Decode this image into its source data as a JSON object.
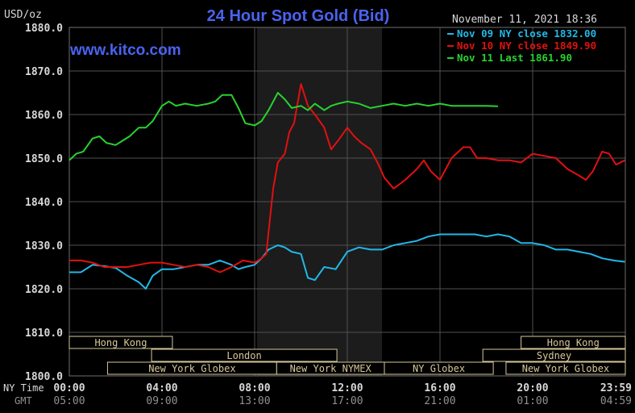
{
  "header": {
    "unit": "USD/oz",
    "title": "24 Hour Spot Gold (Bid)",
    "timestamp": "November 11, 2021 18:36",
    "watermark": "www.kitco.com"
  },
  "colors": {
    "background": "#000000",
    "grid": "#505050",
    "title": "#4a63f0",
    "watermark": "#4a63f0",
    "axis_text": "#d8d8d8",
    "gmt_text": "#909090",
    "session_shade": "#1c1c1c",
    "session_box": "#d6c79a"
  },
  "chart_data": {
    "type": "line",
    "xlabel_rows": [
      "NY Time",
      "GMT"
    ],
    "x_ticks": [
      "00:00",
      "04:00",
      "08:00",
      "12:00",
      "16:00",
      "20:00",
      "23:59"
    ],
    "x_ticks_gmt": [
      "05:00",
      "09:00",
      "13:00",
      "17:00",
      "21:00",
      "01:00",
      "04:59"
    ],
    "ylim": [
      1800,
      1880
    ],
    "y_ticks": [
      "1800.0",
      "1810.0",
      "1820.0",
      "1830.0",
      "1840.0",
      "1850.0",
      "1860.0",
      "1870.0",
      "1880.0"
    ],
    "grid": true,
    "legend_position": "top-right",
    "shaded_region_hours": [
      8.1,
      13.5
    ],
    "series": [
      {
        "name": "Nov 09 NY close 1832.00",
        "color": "#22b8e8",
        "x": [
          0,
          0.5,
          1,
          1.5,
          2,
          2.5,
          3,
          3.3,
          3.6,
          4,
          4.5,
          5,
          5.5,
          6,
          6.5,
          7,
          7.3,
          7.6,
          8,
          8.3,
          8.6,
          9,
          9.3,
          9.6,
          10,
          10.3,
          10.6,
          11,
          11.5,
          12,
          12.5,
          13,
          13.5,
          14,
          14.5,
          15,
          15.5,
          16,
          16.5,
          17,
          17.5,
          18,
          18.5,
          19,
          19.5,
          20,
          20.5,
          21,
          21.5,
          22,
          22.5,
          23,
          23.5,
          23.98
        ],
        "values": [
          1823.8,
          1823.8,
          1825.5,
          1825.2,
          1824.8,
          1823.0,
          1821.5,
          1820.0,
          1823.0,
          1824.5,
          1824.5,
          1825.0,
          1825.5,
          1825.5,
          1826.5,
          1825.5,
          1824.5,
          1825.0,
          1825.5,
          1827.0,
          1829.0,
          1830.0,
          1829.5,
          1828.5,
          1828.0,
          1822.5,
          1822.0,
          1825.0,
          1824.5,
          1828.5,
          1829.5,
          1829.0,
          1829.0,
          1830.0,
          1830.5,
          1831.0,
          1832.0,
          1832.5,
          1832.5,
          1832.5,
          1832.5,
          1832.0,
          1832.5,
          1832.0,
          1830.5,
          1830.5,
          1830.0,
          1829.0,
          1829.0,
          1828.5,
          1828.0,
          1827.0,
          1826.5,
          1826.2
        ]
      },
      {
        "name": "Nov 10 NY close 1849.90",
        "color": "#e21010",
        "x": [
          0,
          0.5,
          1,
          1.5,
          2,
          2.5,
          3,
          3.5,
          4,
          4.5,
          5,
          5.5,
          6,
          6.5,
          7,
          7.5,
          8,
          8.3,
          8.5,
          8.8,
          9,
          9.3,
          9.5,
          9.7,
          10,
          10.3,
          10.6,
          11,
          11.3,
          11.6,
          12,
          12.3,
          12.6,
          13,
          13.3,
          13.6,
          14,
          14.5,
          15,
          15.3,
          15.6,
          16,
          16.5,
          17,
          17.3,
          17.6,
          18,
          18.5,
          19,
          19.5,
          20,
          20.5,
          21,
          21.5,
          22,
          22.3,
          22.6,
          23,
          23.3,
          23.6,
          23.98
        ],
        "values": [
          1826.5,
          1826.5,
          1826.0,
          1825.0,
          1825.0,
          1825.0,
          1825.5,
          1826.0,
          1826.0,
          1825.5,
          1825.0,
          1825.5,
          1825.0,
          1823.8,
          1825.0,
          1826.5,
          1826.0,
          1827.0,
          1828.0,
          1843.0,
          1849.0,
          1851.0,
          1856.0,
          1858.0,
          1867.0,
          1862.0,
          1860.0,
          1857.0,
          1852.0,
          1854.0,
          1857.0,
          1855.0,
          1853.5,
          1852.0,
          1849.0,
          1845.5,
          1843.0,
          1845.0,
          1847.5,
          1849.5,
          1847.0,
          1845.0,
          1850.0,
          1852.5,
          1852.5,
          1850.0,
          1850.0,
          1849.5,
          1849.5,
          1849.0,
          1851.0,
          1850.5,
          1850.0,
          1847.5,
          1846.0,
          1845.0,
          1847.0,
          1851.5,
          1851.0,
          1848.5,
          1849.5
        ]
      },
      {
        "name": "Nov 11 Last 1861.90",
        "color": "#28d22e",
        "x": [
          0,
          0.3,
          0.6,
          1,
          1.3,
          1.6,
          2,
          2.3,
          2.6,
          3,
          3.3,
          3.6,
          4,
          4.3,
          4.6,
          5,
          5.5,
          6,
          6.3,
          6.6,
          7,
          7.3,
          7.6,
          8,
          8.3,
          8.6,
          9,
          9.3,
          9.6,
          10,
          10.3,
          10.6,
          11,
          11.3,
          11.6,
          12,
          12.5,
          13,
          13.5,
          14,
          14.5,
          15,
          15.5,
          16,
          16.5,
          17,
          17.5,
          18,
          18.5
        ],
        "values": [
          1849.5,
          1851.0,
          1851.5,
          1854.5,
          1855.0,
          1853.5,
          1853.0,
          1854.0,
          1855.0,
          1857.0,
          1857.0,
          1858.5,
          1862.0,
          1863.0,
          1862.0,
          1862.5,
          1862.0,
          1862.5,
          1863.0,
          1864.5,
          1864.5,
          1861.5,
          1858.0,
          1857.5,
          1858.5,
          1861.0,
          1865.0,
          1863.5,
          1861.5,
          1862.0,
          1861.0,
          1862.5,
          1861.0,
          1862.0,
          1862.5,
          1863.0,
          1862.5,
          1861.5,
          1862.0,
          1862.5,
          1862.0,
          1862.5,
          1862.0,
          1862.5,
          1862.0,
          1862.0,
          1862.0,
          1862.0,
          1861.9
        ]
      }
    ]
  },
  "sessions": [
    {
      "label": "Hong Kong",
      "start_hour": 0,
      "end_hour": 4.45,
      "row": 1
    },
    {
      "label": "London",
      "start_hour": 3.55,
      "end_hour": 11.55,
      "row": 2
    },
    {
      "label": "New York Globex",
      "start_hour": 1.65,
      "end_hour": 8.95,
      "row": 3
    },
    {
      "label": "New York NYMEX",
      "start_hour": 8.95,
      "end_hour": 13.6,
      "row": 3
    },
    {
      "label": "NY Globex",
      "start_hour": 13.6,
      "end_hour": 18.3,
      "row": 3
    },
    {
      "label": "Hong Kong",
      "start_hour": 19.5,
      "end_hour": 24,
      "row": 1
    },
    {
      "label": "Sydney",
      "start_hour": 17.85,
      "end_hour": 24,
      "row": 2
    },
    {
      "label": "New York Globex",
      "start_hour": 18.85,
      "end_hour": 24,
      "row": 3
    }
  ]
}
